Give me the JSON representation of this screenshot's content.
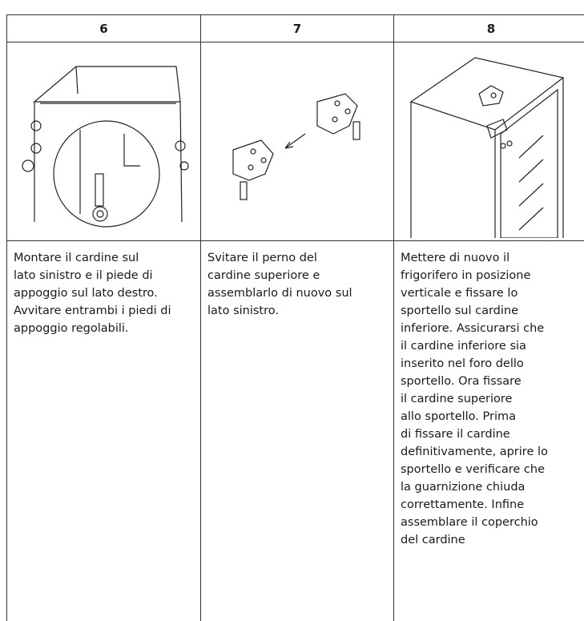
{
  "table": {
    "header": [
      "6",
      "7",
      "8"
    ],
    "text": [
      [
        "Montare il cardine sul",
        "lato sinistro e il piede di",
        "appoggio sul lato destro.",
        "Avvitare entrambi i piedi di",
        "appoggio regolabili."
      ],
      [
        "Svitare il perno del",
        "cardine superiore e",
        "assemblarlo di nuovo sul",
        "lato sinistro."
      ],
      [
        "Mettere di nuovo il",
        "frigorifero in posizione",
        "verticale e fissare lo",
        "sportello sul cardine",
        "inferiore. Assicurarsi che",
        "il cardine inferiore sia",
        "inserito nel foro dello",
        "sportello. Ora fissare",
        "il cardine superiore",
        "allo sportello. Prima",
        "di fissare il cardine",
        "definitivamente, aprire lo",
        "sportello e verificare che",
        "la guarnizione chiuda",
        "correttamente. Infine",
        "assemblare il coperchio",
        "del cardine"
      ]
    ]
  }
}
